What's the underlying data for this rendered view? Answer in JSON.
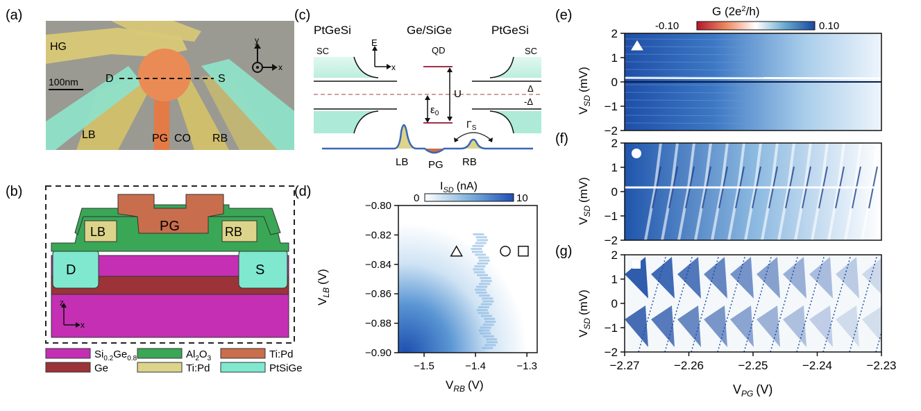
{
  "panel_labels": {
    "a": "(a)",
    "b": "(b)",
    "c": "(c)",
    "d": "(d)",
    "e": "(e)",
    "f": "(f)",
    "g": "(g)"
  },
  "panel_a": {
    "labels": {
      "HG": "HG",
      "D": "D",
      "S": "S",
      "LB": "LB",
      "PG": "PG",
      "CO": "CO",
      "RB": "RB"
    },
    "scalebar": "100nm",
    "axis_y": "y",
    "axis_x": "x"
  },
  "panel_b": {
    "layers": {
      "LB": "LB",
      "PG": "PG",
      "RB": "RB",
      "D": "D",
      "S": "S"
    },
    "axis_z": "z",
    "axis_x": "x",
    "legend": [
      {
        "base": "Si",
        "sub1": "0.2",
        "mid": "Ge",
        "sub2": "0.8",
        "color": "#c42fb4"
      },
      {
        "label": "Al",
        "sub": "2",
        "mid": "O",
        "sub2": "3",
        "color": "#3aa757"
      },
      {
        "label": "Ti:Pd",
        "color": "#c96e4c"
      },
      {
        "label": "Ge",
        "color": "#9b3338"
      },
      {
        "label": "Ti:Pd",
        "color": "#dcd48a"
      },
      {
        "label": "PtSiGe",
        "color": "#7fe8cf"
      }
    ]
  },
  "panel_c": {
    "titles": {
      "left": "PtGeSi",
      "mid": "Ge/SiGe",
      "right": "PtGeSi"
    },
    "sc_left": "SC",
    "sc_right": "SC",
    "qd": "QD",
    "axis_E": "E",
    "axis_x": "x",
    "U": "U",
    "delta": "Δ",
    "neg_delta": "-Δ",
    "eps": "ε",
    "eps_sub": "0",
    "gamma": "Γ",
    "gamma_sub": "S",
    "barriers": {
      "LB": "LB",
      "PG": "PG",
      "RB": "RB"
    }
  },
  "panel_d": {
    "chart_data": {
      "type": "heatmap",
      "title": "",
      "colorbar": {
        "label": "I",
        "label_sub": "SD",
        "label_unit": "(nA)",
        "min": 0,
        "max": 10,
        "ticks": [
          "0",
          "10"
        ]
      },
      "xlabel": {
        "main": "V",
        "sub": "RB",
        "unit": "(V)"
      },
      "ylabel": {
        "main": "V",
        "sub": "LB",
        "unit": "(V)"
      },
      "xlim": [
        -1.55,
        -1.28
      ],
      "ylim": [
        -0.9,
        -0.8
      ],
      "xticks": [
        -1.5,
        -1.4,
        -1.3
      ],
      "xtick_labels": [
        "−1.5",
        "−1.4",
        "−1.3"
      ],
      "yticks": [
        -0.9,
        -0.88,
        -0.86,
        -0.84,
        -0.82,
        -0.8
      ],
      "ytick_labels": [
        "−0.90",
        "−0.88",
        "−0.86",
        "−0.84",
        "−0.82",
        "−0.80"
      ],
      "markers": [
        {
          "shape": "triangle",
          "x": -1.437,
          "y": -0.831
        },
        {
          "shape": "circle",
          "x": -1.342,
          "y": -0.831
        },
        {
          "shape": "square",
          "x": -1.307,
          "y": -0.831
        }
      ]
    }
  },
  "panels_efg": {
    "chart_data": [
      {
        "type": "heatmap",
        "panel": "e",
        "marker": "triangle",
        "ylabel": {
          "main": "V",
          "sub": "SD",
          "unit": "(mV)"
        },
        "ylim": [
          -2,
          2
        ],
        "yticks": [
          "2",
          "1",
          "0",
          "−1",
          "−2"
        ]
      },
      {
        "type": "heatmap",
        "panel": "f",
        "marker": "circle",
        "ylabel": {
          "main": "V",
          "sub": "SD",
          "unit": "(mV)"
        },
        "ylim": [
          -2,
          2
        ],
        "yticks": [
          "2",
          "1",
          "0",
          "−1",
          "−2"
        ]
      },
      {
        "type": "heatmap",
        "panel": "g",
        "marker": "square",
        "ylabel": {
          "main": "V",
          "sub": "SD",
          "unit": "(mV)"
        },
        "ylim": [
          -2,
          2
        ],
        "yticks": [
          "2",
          "1",
          "0",
          "−1",
          "−2"
        ]
      }
    ],
    "shared_x": {
      "main": "V",
      "sub": "PG",
      "unit": "(V)",
      "xlim": [
        -2.27,
        -2.23
      ],
      "xticks": [
        "−2.27",
        "−2.26",
        "−2.25",
        "−2.24",
        "−2.23"
      ]
    },
    "colorbar": {
      "label": "G (2e",
      "sup": "2",
      "label_end": "/h)",
      "min": -0.1,
      "max": 0.1,
      "ticks": [
        "-0.10",
        "0.10"
      ]
    }
  }
}
